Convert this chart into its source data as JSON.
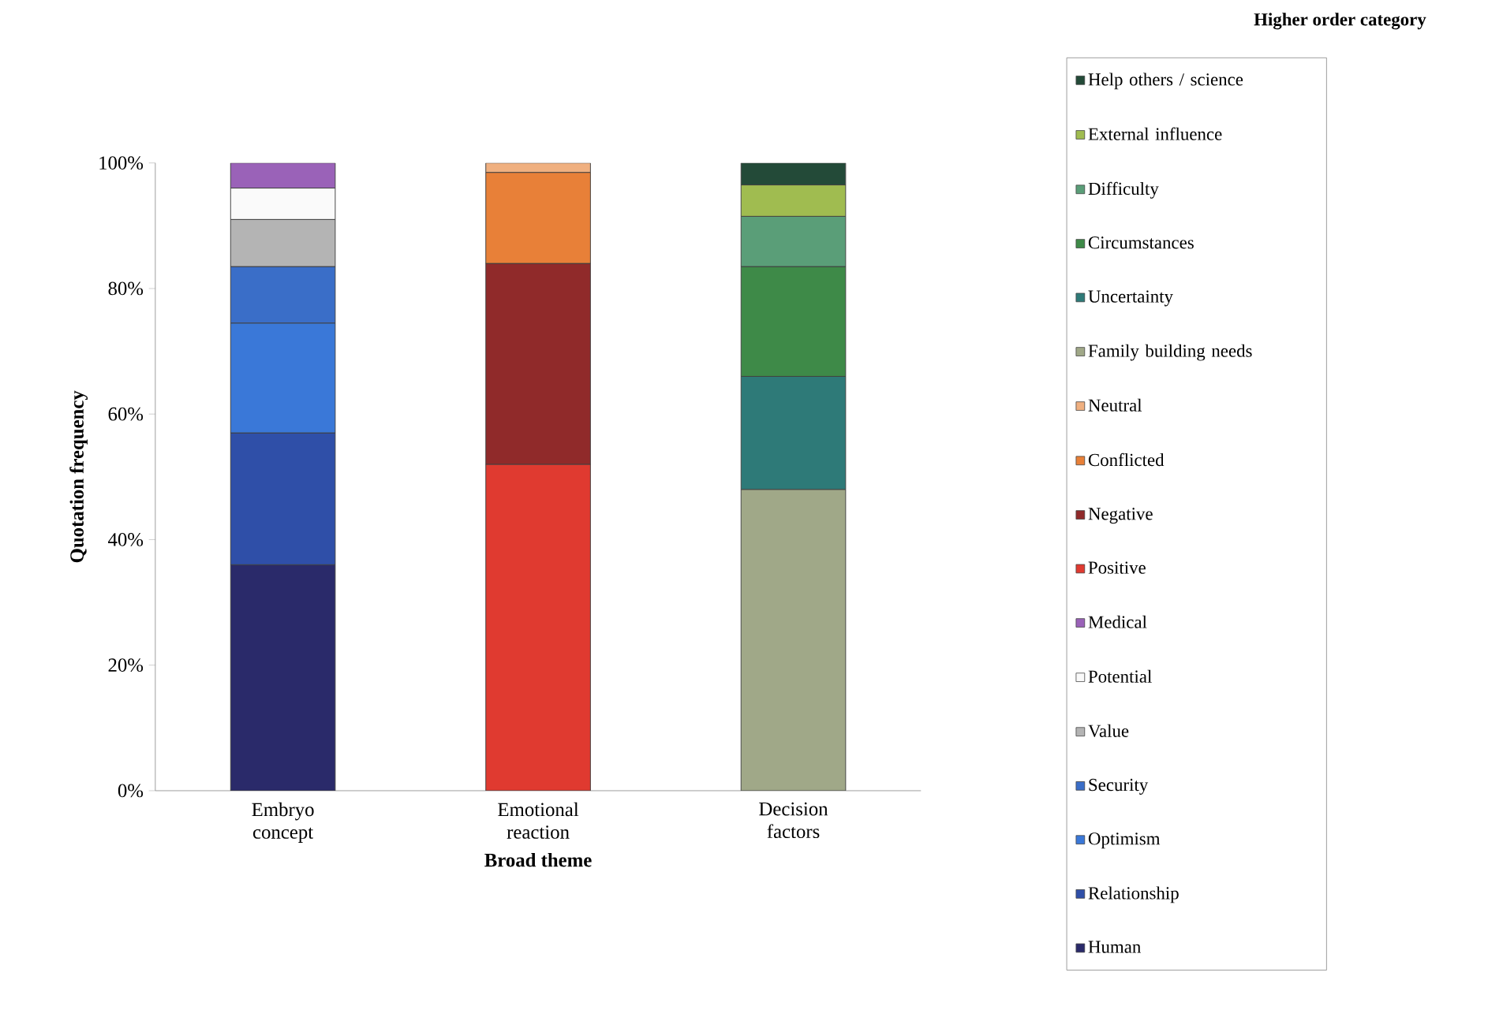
{
  "chart_data": {
    "type": "bar",
    "stacked": true,
    "xlabel": "Broad theme",
    "ylabel": "Quotation frequency",
    "legend_title": "Higher order category",
    "legend": "right",
    "categories": [
      "Embryo concept",
      "Emotional reaction",
      "Decision factors"
    ],
    "ylim": [
      0,
      100
    ],
    "yticks": [
      {
        "value": 0,
        "label": "0%"
      },
      {
        "value": 20,
        "label": "20%"
      },
      {
        "value": 40,
        "label": "40%"
      },
      {
        "value": 60,
        "label": "60%"
      },
      {
        "value": 80,
        "label": "80%"
      },
      {
        "value": 100,
        "label": "100%"
      }
    ],
    "series": [
      {
        "name": "Human",
        "color": "#2a2a6a",
        "values": [
          36,
          null,
          null
        ]
      },
      {
        "name": "Relationship",
        "color": "#2f4fa8",
        "values": [
          21,
          null,
          null
        ]
      },
      {
        "name": "Optimism",
        "color": "#3a78d8",
        "values": [
          17.5,
          null,
          null
        ]
      },
      {
        "name": "Security",
        "color": "#3a6ec8",
        "values": [
          9,
          null,
          null
        ]
      },
      {
        "name": "Value",
        "color": "#b4b4b4",
        "values": [
          7.5,
          null,
          null
        ]
      },
      {
        "name": "Potential",
        "color": "#fafafa",
        "values": [
          5,
          null,
          null
        ]
      },
      {
        "name": "Medical",
        "color": "#9a62b8",
        "values": [
          4,
          null,
          null
        ]
      },
      {
        "name": "Positive",
        "color": "#e03a30",
        "values": [
          null,
          52,
          null
        ]
      },
      {
        "name": "Negative",
        "color": "#902a2a",
        "values": [
          null,
          32,
          null
        ]
      },
      {
        "name": "Conflicted",
        "color": "#e88038",
        "values": [
          null,
          14.5,
          null
        ]
      },
      {
        "name": "Neutral",
        "color": "#f0b080",
        "values": [
          null,
          1.5,
          null
        ]
      },
      {
        "name": "Family building needs",
        "color": "#a0a888",
        "values": [
          null,
          null,
          48
        ]
      },
      {
        "name": "Uncertainty",
        "color": "#2e7a78",
        "values": [
          null,
          null,
          18
        ]
      },
      {
        "name": "Circumstances",
        "color": "#3e8a48",
        "values": [
          null,
          null,
          17.5
        ]
      },
      {
        "name": "Difficulty",
        "color": "#5a9e78",
        "values": [
          null,
          null,
          8
        ]
      },
      {
        "name": "External influence",
        "color": "#a0bc50",
        "values": [
          null,
          null,
          5
        ]
      },
      {
        "name": "Help others / science",
        "color": "#234a38",
        "values": [
          null,
          null,
          3.5
        ]
      }
    ]
  }
}
